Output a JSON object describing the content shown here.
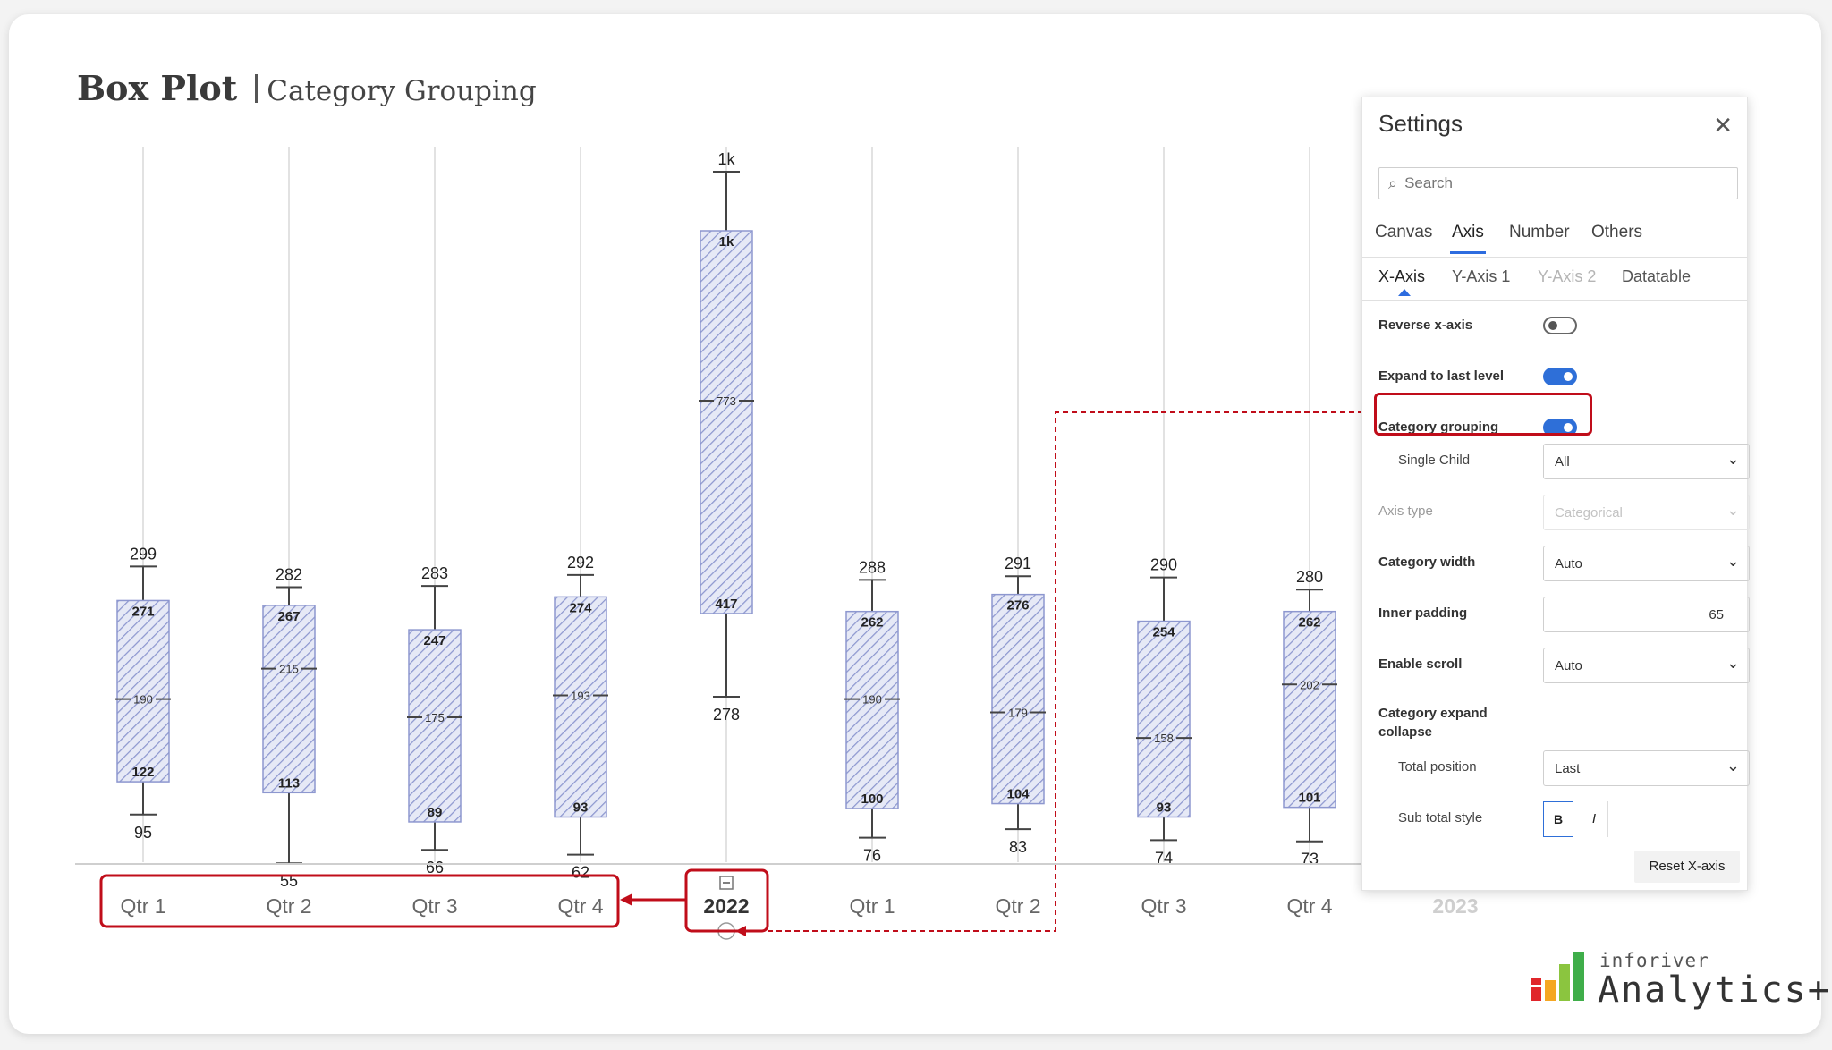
{
  "title": {
    "main": "Box Plot",
    "sub": "Category Grouping"
  },
  "chart_data": {
    "type": "box",
    "categories": [
      "Qtr 1",
      "Qtr 2",
      "Qtr 3",
      "Qtr 4",
      "2022",
      "Qtr 1",
      "Qtr 2",
      "Qtr 3",
      "Qtr 4",
      "2023"
    ],
    "groups": [
      {
        "label": "2022",
        "state": "collapsed",
        "children": [
          "Qtr 1",
          "Qtr 2",
          "Qtr 3",
          "Qtr 4"
        ]
      },
      {
        "label": "2023",
        "state": "expanded",
        "children": [
          "Qtr 1",
          "Qtr 2",
          "Qtr 3",
          "Qtr 4"
        ]
      }
    ],
    "boxes": [
      {
        "label": "Qtr 1",
        "min": 95,
        "q1": 122,
        "median": 190,
        "q3": 271,
        "max": 299
      },
      {
        "label": "Qtr 2",
        "min": 55,
        "q1": 113,
        "median": 215,
        "q3": 267,
        "max": 282
      },
      {
        "label": "Qtr 3",
        "min": 66,
        "q1": 89,
        "median": 175,
        "q3": 247,
        "max": 283
      },
      {
        "label": "Qtr 4",
        "min": 62,
        "q1": 93,
        "median": 193,
        "q3": 274,
        "max": 292
      },
      {
        "label": "2022",
        "min": 278,
        "q1": 417,
        "median": 773,
        "q3": 1000,
        "max": 1000,
        "min_label": "278",
        "q1_label": "417",
        "median_label": "773",
        "q3_label": "1k",
        "max_label": "1k"
      },
      {
        "label": "Qtr 1",
        "min": 76,
        "q1": 100,
        "median": 190,
        "q3": 262,
        "max": 288
      },
      {
        "label": "Qtr 2",
        "min": 83,
        "q1": 104,
        "median": 179,
        "q3": 276,
        "max": 291
      },
      {
        "label": "Qtr 3",
        "min": 74,
        "q1": 93,
        "median": 158,
        "q3": 254,
        "max": 290
      },
      {
        "label": "Qtr 4",
        "min": 73,
        "q1": 101,
        "median": 202,
        "q3": 262,
        "max": 280
      }
    ],
    "grid": true,
    "legend": "none",
    "colors": {
      "box_hatch": "#8d97cf",
      "box_fill": "#e6e9f6",
      "whisker": "#444444",
      "grid": "#d9d9d9",
      "axis": "#cccccc"
    }
  },
  "settings": {
    "title": "Settings",
    "close_icon": "close-icon",
    "search_placeholder": "Search",
    "tabs": [
      "Canvas",
      "Axis",
      "Number",
      "Others"
    ],
    "active_tab": "Axis",
    "subtabs": [
      "X-Axis",
      "Y-Axis 1",
      "Y-Axis 2",
      "Datatable"
    ],
    "active_subtab": "X-Axis",
    "disabled_subtab": "Y-Axis 2",
    "reverse_x_axis": {
      "label": "Reverse x-axis",
      "on": false
    },
    "expand_to_last_level": {
      "label": "Expand to last level",
      "on": true
    },
    "category_grouping": {
      "label": "Category grouping",
      "on": true
    },
    "single_child": {
      "label": "Single Child",
      "value": "All"
    },
    "axis_type": {
      "label": "Axis type",
      "value": "Categorical",
      "disabled": true
    },
    "category_width": {
      "label": "Category width",
      "value": "Auto"
    },
    "inner_padding": {
      "label": "Inner padding",
      "value": "65"
    },
    "enable_scroll": {
      "label": "Enable scroll",
      "value": "Auto"
    },
    "category_expand_collapse": {
      "label": "Category expand collapse"
    },
    "total_position": {
      "label": "Total position",
      "value": "Last"
    },
    "sub_total_style": {
      "label": "Sub total style",
      "bold": "B",
      "italic": "I"
    },
    "reset_button": "Reset X-axis"
  },
  "highlight_color": "#c00d1a",
  "toggle_on_color": "#2e6fd8",
  "logo": {
    "small": "inforiver",
    "big": "Analytics+",
    "bar_colors": [
      "#e0262b",
      "#f5a623",
      "#8bc53f",
      "#3fae4a"
    ]
  }
}
